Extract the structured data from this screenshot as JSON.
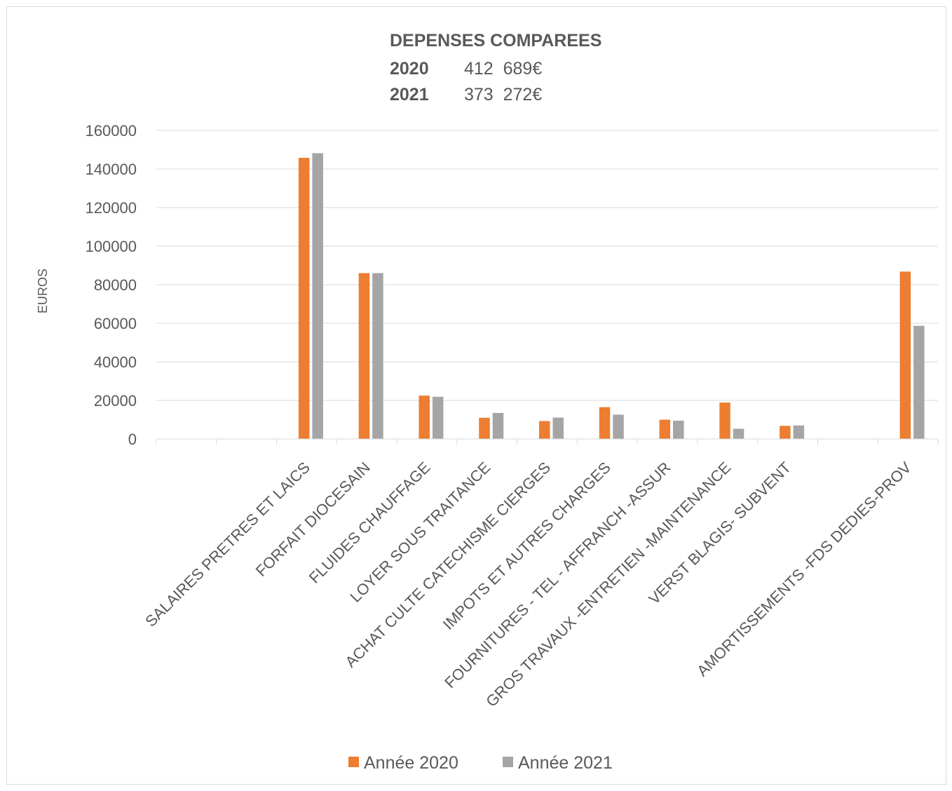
{
  "chart_data": {
    "type": "bar",
    "title": "DEPENSES COMPAREES",
    "subtitle_lines": [
      {
        "year": "2020",
        "amount": "412  689€"
      },
      {
        "year": "2021",
        "amount": "373  272€"
      }
    ],
    "ylabel": "EUROS",
    "xlabel": "",
    "ylim": [
      0,
      160000
    ],
    "yticks": [
      "0",
      "20000",
      "40000",
      "60000",
      "80000",
      "100000",
      "120000",
      "140000",
      "160000"
    ],
    "grid": true,
    "legend_position": "bottom",
    "categories": [
      "",
      "",
      "SALAIRES PRETRES ET LAICS",
      "FORFAIT DIOCESAIN",
      "FLUIDES CHAUFFAGE",
      "LOYER SOUS TRAITANCE",
      "ACHAT CULTE CATECHISME CIERGES",
      "IMPOTS ET AUTRES CHARGES",
      "FOURNITURES - TEL - AFFRANCH -ASSUR",
      "GROS TRAVAUX -ENTRETIEN -MAINTENANCE",
      "VERST BLAGIS- SUBVENT",
      "",
      "AMORTISSEMENTS -FDS DEDIES-PROV"
    ],
    "series": [
      {
        "name": "Année 2020",
        "color": "#ED7D31",
        "values": [
          null,
          null,
          145800,
          86000,
          22500,
          11000,
          9300,
          16500,
          10000,
          18900,
          6800,
          null,
          86800
        ]
      },
      {
        "name": "Année 2021",
        "color": "#A5A5A5",
        "values": [
          null,
          null,
          148200,
          86000,
          21900,
          13500,
          11100,
          12600,
          9500,
          5300,
          7000,
          null,
          58700
        ]
      }
    ]
  }
}
